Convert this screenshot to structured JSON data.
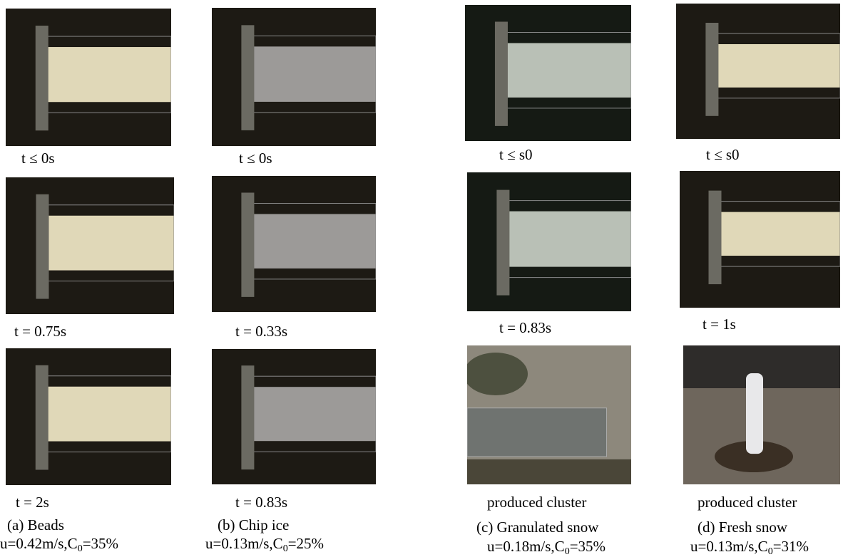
{
  "figure": {
    "columns": [
      {
        "panels": [
          {
            "caption": "t ≤ 0s"
          },
          {
            "caption": "t = 0.75s"
          },
          {
            "caption": "t = 2s"
          }
        ],
        "label": "(a)   Beads",
        "condition": {
          "prefix": "u=0.42m/s,C",
          "sub": "0",
          "suffix": "=35%"
        }
      },
      {
        "panels": [
          {
            "caption": "t ≤ 0s"
          },
          {
            "caption": "t = 0.33s"
          },
          {
            "caption": "t = 0.83s"
          }
        ],
        "label": "(b) Chip ice",
        "condition": {
          "prefix": "u=0.13m/s,C",
          "sub": "0",
          "suffix": "=25%"
        }
      },
      {
        "panels": [
          {
            "caption": "t ≤ s0"
          },
          {
            "caption": "t = 0.83s"
          },
          {
            "caption": "produced cluster"
          }
        ],
        "label": "(c)   Granulated snow",
        "condition": {
          "prefix": "u=0.18m/s,C",
          "sub": "0",
          "suffix": "=35%"
        }
      },
      {
        "panels": [
          {
            "caption": "t ≤ s0"
          },
          {
            "caption": "t = 1s"
          },
          {
            "caption": "produced cluster"
          }
        ],
        "label": "(d)    Fresh snow",
        "condition": {
          "prefix": "u=0.13m/s,C",
          "sub": "0",
          "suffix": "=31%"
        }
      }
    ]
  }
}
